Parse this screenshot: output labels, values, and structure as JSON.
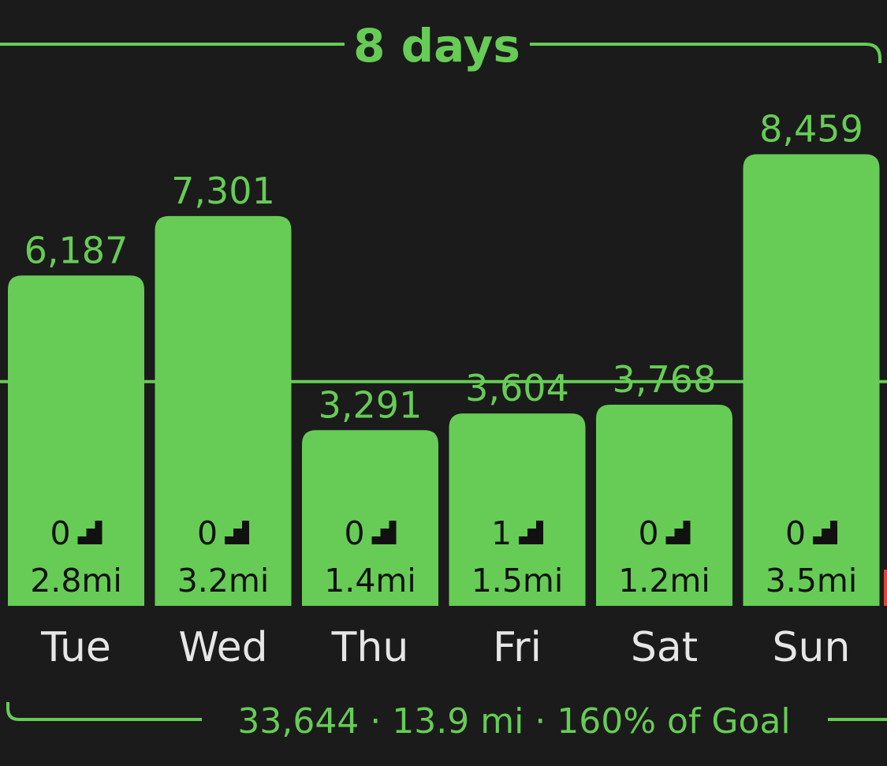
{
  "header": {
    "title": "8 days"
  },
  "footer": {
    "summary": "33,644 · 13.9 mi · 160% of Goal"
  },
  "chart_data": {
    "type": "bar",
    "categories": [
      "Tue",
      "Wed",
      "Thu",
      "Fri",
      "Sat",
      "Sun"
    ],
    "values": [
      6187,
      7301,
      3291,
      3604,
      3768,
      8459
    ],
    "value_labels": [
      "6,187",
      "7,301",
      "3,291",
      "3,604",
      "3,768",
      "8,459"
    ],
    "flights": [
      "0",
      "0",
      "0",
      "1",
      "0",
      "0"
    ],
    "distances": [
      "2.8mi",
      "3.2mi",
      "1.4mi",
      "1.5mi",
      "1.2mi",
      "3.5mi"
    ],
    "goal": 4200,
    "ylim": [
      0,
      10000
    ],
    "colors": {
      "bar": "#66cc55",
      "text_dark": "#111111",
      "background": "#1b1b1b",
      "day_label": "#e6e6e6",
      "goal_overflow": "#e0443e"
    },
    "icons": {
      "flights": "stairs-icon"
    }
  }
}
